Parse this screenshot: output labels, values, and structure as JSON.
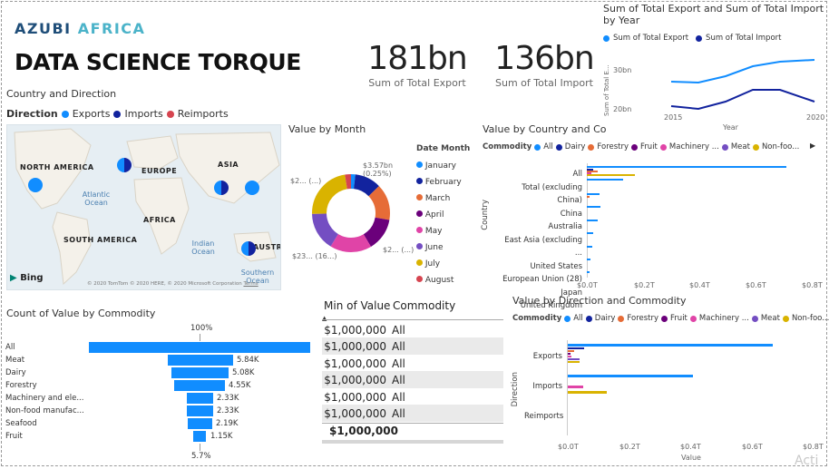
{
  "header": {
    "brand_part1": "AZUBI",
    "brand_part2": "AFRICA",
    "title": "DATA SCIENCE TORQUE"
  },
  "kpis": {
    "export": {
      "value": "181bn",
      "label": "Sum of Total Export"
    },
    "import": {
      "value": "136bn",
      "label": "Sum of Total Import"
    }
  },
  "colors": {
    "accent": "#118DFF",
    "dark_blue": "#12239E",
    "orange": "#E66C37",
    "purple": "#6B007B",
    "pink": "#E044A7",
    "violet": "#744EC2",
    "gold": "#D9B300",
    "red": "#D64550"
  },
  "map": {
    "title": "Country and Direction",
    "legend_title": "Direction",
    "legend": [
      "Exports",
      "Imports",
      "Reimports"
    ],
    "labels": [
      "NORTH AMERICA",
      "EUROPE",
      "ASIA",
      "AFRICA",
      "SOUTH AMERICA",
      "AUSTRALIA"
    ],
    "oceans": [
      "Atlantic Ocean",
      "Indian Ocean",
      "Southern Ocean"
    ],
    "bing": "Bing",
    "copyright": "© 2020 TomTom © 2020 HERE, © 2020 Microsoft Corporation",
    "terms": "Terms"
  },
  "donut": {
    "title": "Value by Month",
    "legend_title": "Date Month",
    "months": [
      "January",
      "February",
      "March",
      "April",
      "May",
      "June",
      "July",
      "August"
    ],
    "labels": {
      "top_right": "$3.57bn (0.25%)",
      "top_left": "$2... (...)",
      "bottom_left": "$23... (16...)",
      "bottom_right": "$2... (...)"
    }
  },
  "line_chart": {
    "title": "Sum of Total Export and Sum of Total Import by Year",
    "legend": [
      "Sum of Total Export",
      "Sum of Total Import"
    ],
    "ylabel": "Sum of Total E...",
    "xlabel": "Year",
    "ytick_top": "30bn",
    "ytick_bottom": "20bn",
    "xtick_left": "2015",
    "xtick_right": "2020"
  },
  "country_chart": {
    "title": "Value by Country and Co",
    "legend_title": "Commodity",
    "legend": [
      "All",
      "Dairy",
      "Forestry",
      "Fruit",
      "Machinery ...",
      "Meat",
      "Non-foo..."
    ],
    "ylabel": "Country",
    "categories": [
      "All",
      "Total (excluding China)",
      "China",
      "Australia",
      "East Asia (excluding ...",
      "United States",
      "European Union (28)",
      "Japan",
      "United Kingdom"
    ],
    "xticks": [
      "$0.0T",
      "$0.2T",
      "$0.4T",
      "$0.6T",
      "$0.8T"
    ]
  },
  "direction_chart": {
    "title": "Value by Direction and Commodity",
    "legend_title": "Commodity",
    "legend": [
      "All",
      "Dairy",
      "Forestry",
      "Fruit",
      "Machinery ...",
      "Meat",
      "Non-foo..."
    ],
    "ylabel": "Direction",
    "categories": [
      "Exports",
      "Imports",
      "Reimports"
    ],
    "xticks": [
      "$0.0T",
      "$0.2T",
      "$0.4T",
      "$0.6T",
      "$0.8T"
    ],
    "xlabel": "Value"
  },
  "funnel": {
    "title": "Count of Value by Commodity",
    "top_pct": "100%",
    "bottom_pct": "5.7%",
    "categories": [
      "All",
      "Meat",
      "Dairy",
      "Forestry",
      "Machinery and ele...",
      "Non-food manufac...",
      "Seafood",
      "Fruit"
    ],
    "values": [
      "",
      "5.84K",
      "5.08K",
      "4.55K",
      "2.33K",
      "2.33K",
      "2.19K",
      "1.15K"
    ]
  },
  "table": {
    "headers": [
      "Min of Value",
      "Commodity"
    ],
    "rows": [
      [
        "$1,000,000",
        "All"
      ],
      [
        "$1,000,000",
        "All"
      ],
      [
        "$1,000,000",
        "All"
      ],
      [
        "$1,000,000",
        "All"
      ],
      [
        "$1,000,000",
        "All"
      ],
      [
        "$1,000,000",
        "All"
      ]
    ],
    "total": "$1,000,000"
  },
  "watermark": "Acti"
}
